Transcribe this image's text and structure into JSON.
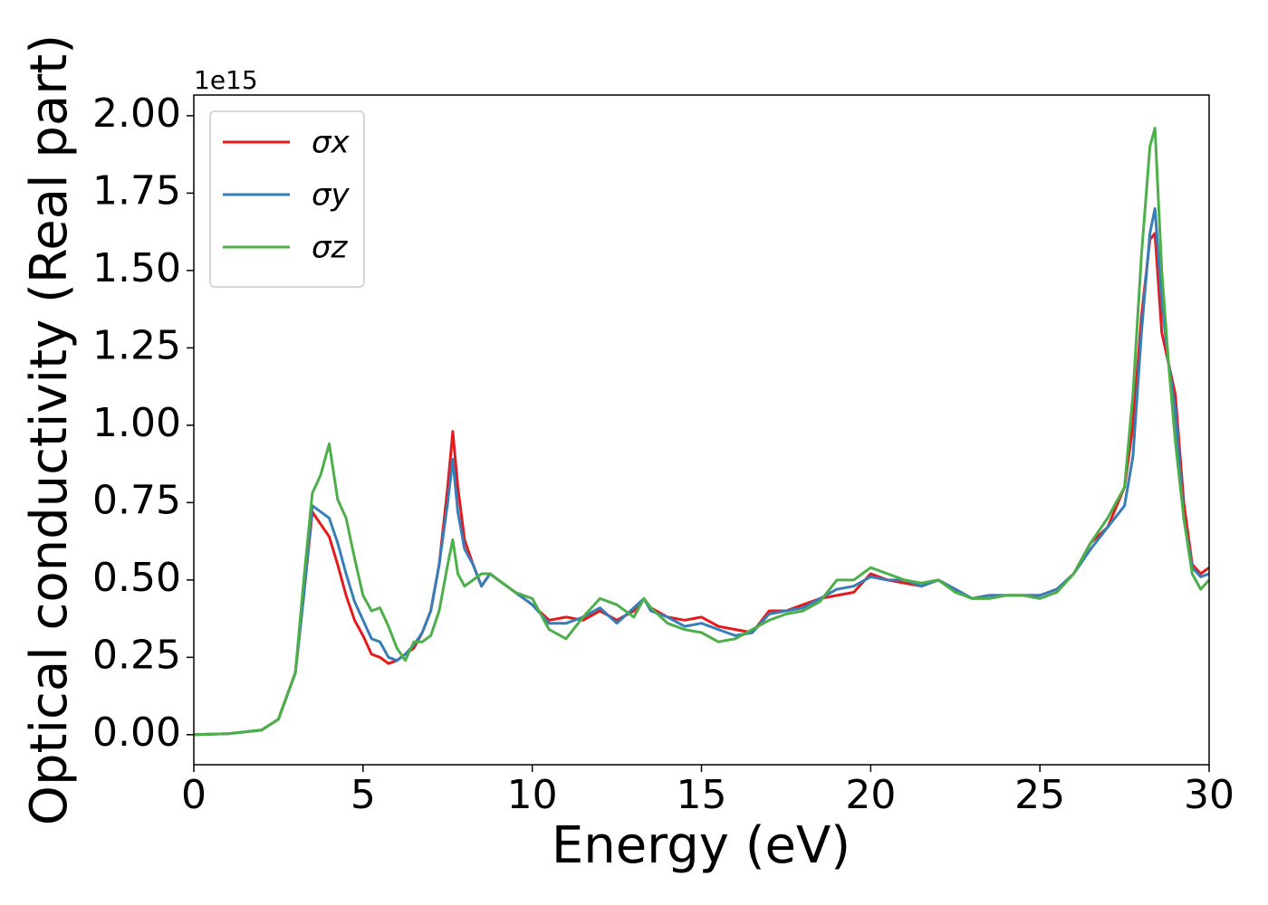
{
  "chart_data": {
    "type": "line",
    "xlabel": "Energy (eV)",
    "ylabel": "Optical conductivity (Real part)",
    "y_offset_text": "1e15",
    "legend_loc": "upper left",
    "x": [
      0,
      1,
      2,
      2.5,
      3,
      3.25,
      3.5,
      3.75,
      4,
      4.25,
      4.5,
      4.75,
      5,
      5.25,
      5.5,
      5.75,
      6,
      6.25,
      6.5,
      6.75,
      7,
      7.25,
      7.5,
      7.65,
      7.8,
      8,
      8.25,
      8.5,
      8.75,
      9,
      9.5,
      10,
      10.5,
      11,
      11.5,
      12,
      12.5,
      13,
      13.3,
      13.5,
      14,
      14.5,
      15,
      15.5,
      16,
      16.5,
      17,
      17.5,
      18,
      18.5,
      19,
      19.5,
      20,
      20.5,
      21,
      21.5,
      22,
      22.5,
      23,
      23.5,
      24,
      24.5,
      25,
      25.5,
      26,
      26.5,
      27,
      27.5,
      27.75,
      28,
      28.25,
      28.4,
      28.6,
      28.8,
      29,
      29.25,
      29.5,
      29.75,
      30
    ],
    "series": [
      {
        "name": "σx",
        "color": "#e41a1c",
        "values": [
          0,
          0.003,
          0.015,
          0.05,
          0.2,
          0.45,
          0.72,
          0.68,
          0.64,
          0.55,
          0.45,
          0.37,
          0.32,
          0.26,
          0.25,
          0.23,
          0.24,
          0.26,
          0.28,
          0.33,
          0.4,
          0.55,
          0.8,
          0.98,
          0.8,
          0.63,
          0.55,
          0.48,
          0.52,
          0.5,
          0.46,
          0.42,
          0.37,
          0.38,
          0.37,
          0.4,
          0.37,
          0.4,
          0.44,
          0.41,
          0.38,
          0.37,
          0.38,
          0.35,
          0.34,
          0.33,
          0.4,
          0.4,
          0.42,
          0.44,
          0.45,
          0.46,
          0.52,
          0.5,
          0.49,
          0.48,
          0.5,
          0.47,
          0.44,
          0.45,
          0.45,
          0.45,
          0.45,
          0.47,
          0.52,
          0.62,
          0.67,
          0.8,
          1.0,
          1.35,
          1.6,
          1.62,
          1.3,
          1.2,
          1.1,
          0.75,
          0.55,
          0.52,
          0.54
        ]
      },
      {
        "name": "σy",
        "color": "#377eb8",
        "values": [
          0,
          0.003,
          0.015,
          0.05,
          0.2,
          0.45,
          0.74,
          0.72,
          0.7,
          0.62,
          0.52,
          0.43,
          0.37,
          0.31,
          0.3,
          0.25,
          0.24,
          0.26,
          0.29,
          0.33,
          0.4,
          0.55,
          0.75,
          0.89,
          0.72,
          0.6,
          0.55,
          0.48,
          0.52,
          0.5,
          0.46,
          0.42,
          0.36,
          0.36,
          0.38,
          0.41,
          0.36,
          0.41,
          0.44,
          0.4,
          0.38,
          0.35,
          0.36,
          0.34,
          0.32,
          0.33,
          0.39,
          0.4,
          0.41,
          0.44,
          0.47,
          0.48,
          0.51,
          0.5,
          0.5,
          0.48,
          0.5,
          0.47,
          0.44,
          0.45,
          0.45,
          0.45,
          0.45,
          0.47,
          0.52,
          0.6,
          0.67,
          0.74,
          0.9,
          1.3,
          1.62,
          1.7,
          1.4,
          1.2,
          1.05,
          0.7,
          0.54,
          0.51,
          0.52
        ]
      },
      {
        "name": "σz",
        "color": "#4daf4a",
        "values": [
          0,
          0.003,
          0.015,
          0.05,
          0.2,
          0.5,
          0.78,
          0.84,
          0.94,
          0.76,
          0.7,
          0.57,
          0.45,
          0.4,
          0.41,
          0.35,
          0.28,
          0.24,
          0.3,
          0.3,
          0.32,
          0.4,
          0.55,
          0.63,
          0.52,
          0.48,
          0.5,
          0.52,
          0.52,
          0.5,
          0.46,
          0.44,
          0.34,
          0.31,
          0.38,
          0.44,
          0.42,
          0.38,
          0.44,
          0.41,
          0.36,
          0.34,
          0.33,
          0.3,
          0.31,
          0.34,
          0.37,
          0.39,
          0.4,
          0.43,
          0.5,
          0.5,
          0.54,
          0.52,
          0.5,
          0.49,
          0.5,
          0.46,
          0.44,
          0.44,
          0.45,
          0.45,
          0.44,
          0.46,
          0.52,
          0.62,
          0.7,
          0.8,
          1.1,
          1.55,
          1.9,
          1.96,
          1.5,
          1.2,
          0.95,
          0.7,
          0.52,
          0.47,
          0.5
        ]
      }
    ],
    "xlim": [
      0,
      30
    ],
    "ylim": [
      -0.097,
      2.067
    ],
    "xticks": [
      0,
      5,
      10,
      15,
      20,
      25,
      30
    ],
    "yticks": [
      {
        "value": 0,
        "label": "0.00"
      },
      0.25,
      {
        "value": 0.5,
        "label": "0.50"
      },
      0.75,
      {
        "value": 1,
        "label": "1.00"
      },
      1.25,
      {
        "value": 1.5,
        "label": "1.50"
      },
      1.75,
      {
        "value": 2,
        "label": "2.00"
      }
    ],
    "grid": false
  }
}
